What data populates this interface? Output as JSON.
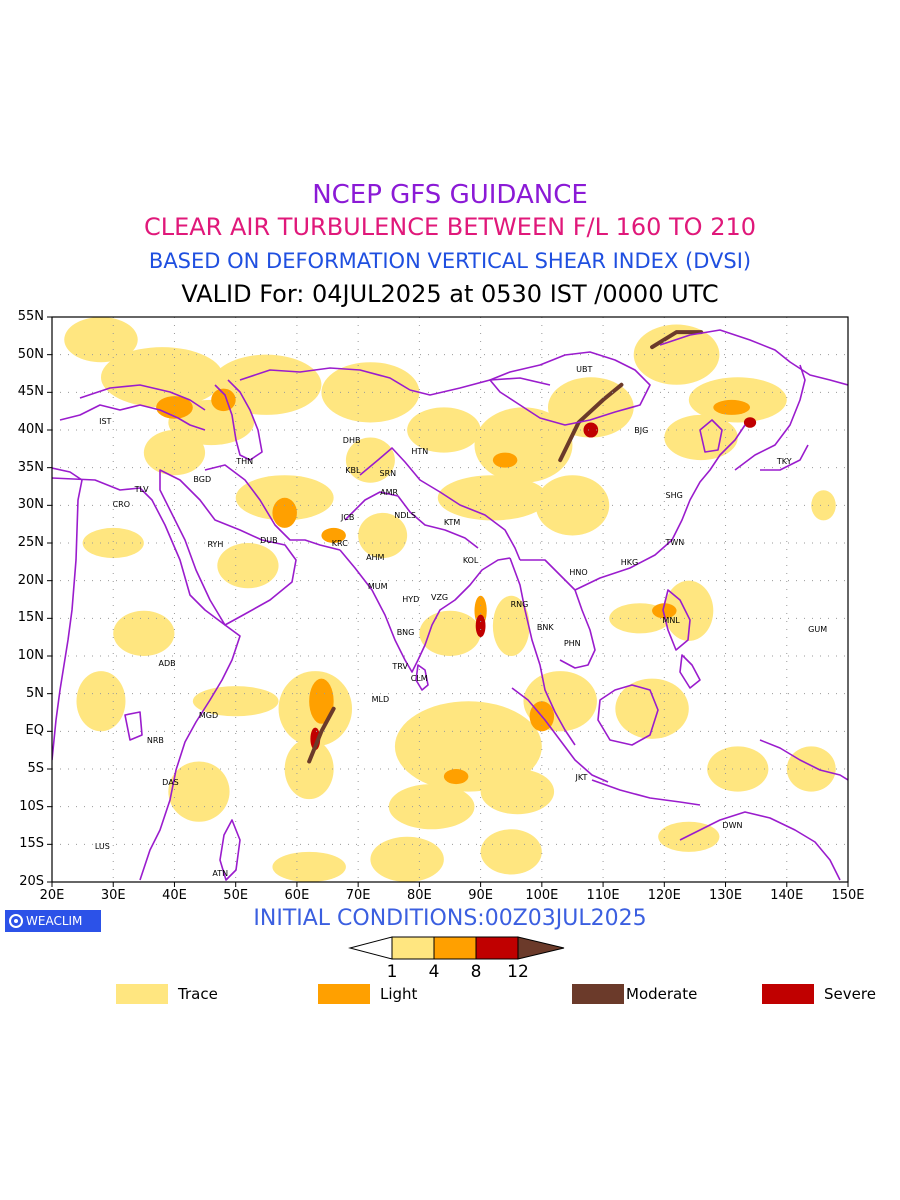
{
  "title": {
    "line1": "NCEP GFS GUIDANCE",
    "line2": "CLEAR AIR TURBULENCE BETWEEN F/L 160 TO 210",
    "line3": "BASED ON DEFORMATION VERTICAL SHEAR INDEX (DVSI)",
    "line4": "VALID For: 04JUL2025 at 0530 IST /0000 UTC"
  },
  "colors": {
    "title1": "#8b1ad6",
    "title2": "#e0187a",
    "title3": "#1f4fe0",
    "init": "#3b5fe0",
    "brand_bg": "#2c52e8",
    "boundary": "#9a1ccd",
    "trace": "#ffe680",
    "light": "#ffa000",
    "moderate": "#6b3a2a",
    "severe": "#c00000"
  },
  "axes": {
    "lat_labels": [
      "55N",
      "50N",
      "45N",
      "40N",
      "35N",
      "30N",
      "25N",
      "20N",
      "15N",
      "10N",
      "5N",
      "EQ",
      "5S",
      "10S",
      "15S",
      "20S"
    ],
    "lon_labels": [
      "20E",
      "30E",
      "40E",
      "50E",
      "60E",
      "70E",
      "80E",
      "90E",
      "100E",
      "110E",
      "120E",
      "130E",
      "140E",
      "150E"
    ],
    "lat_range": [
      -20,
      55
    ],
    "lon_range": [
      20,
      150
    ],
    "grid": true
  },
  "stations": [
    {
      "code": "UBT",
      "lon": 106.9,
      "lat": 47.9
    },
    {
      "code": "BJG",
      "lon": 116.4,
      "lat": 39.9
    },
    {
      "code": "TKY",
      "lon": 139.7,
      "lat": 35.7
    },
    {
      "code": "SHG",
      "lon": 121.5,
      "lat": 31.2
    },
    {
      "code": "TWN",
      "lon": 121.5,
      "lat": 25.0
    },
    {
      "code": "HKG",
      "lon": 114.2,
      "lat": 22.3
    },
    {
      "code": "HNO",
      "lon": 105.8,
      "lat": 21.0
    },
    {
      "code": "RNG",
      "lon": 96.2,
      "lat": 16.8
    },
    {
      "code": "BNK",
      "lon": 100.5,
      "lat": 13.7
    },
    {
      "code": "PHN",
      "lon": 104.9,
      "lat": 11.6
    },
    {
      "code": "MNL",
      "lon": 121.0,
      "lat": 14.6
    },
    {
      "code": "GUM",
      "lon": 144.8,
      "lat": 13.4
    },
    {
      "code": "IST",
      "lon": 29.0,
      "lat": 41.0
    },
    {
      "code": "TLV",
      "lon": 34.8,
      "lat": 32.1
    },
    {
      "code": "CRO",
      "lon": 31.2,
      "lat": 30.0
    },
    {
      "code": "BGD",
      "lon": 44.4,
      "lat": 33.3
    },
    {
      "code": "THN",
      "lon": 51.4,
      "lat": 35.7
    },
    {
      "code": "RYH",
      "lon": 46.7,
      "lat": 24.7
    },
    {
      "code": "DUB",
      "lon": 55.3,
      "lat": 25.2
    },
    {
      "code": "DHB",
      "lon": 68.8,
      "lat": 38.6
    },
    {
      "code": "KBL",
      "lon": 69.2,
      "lat": 34.5
    },
    {
      "code": "SRN",
      "lon": 74.8,
      "lat": 34.1
    },
    {
      "code": "HTN",
      "lon": 80.0,
      "lat": 37.1
    },
    {
      "code": "AMR",
      "lon": 74.9,
      "lat": 31.6
    },
    {
      "code": "JCB",
      "lon": 68.5,
      "lat": 28.3
    },
    {
      "code": "NDLS",
      "lon": 77.2,
      "lat": 28.6
    },
    {
      "code": "KRC",
      "lon": 67.0,
      "lat": 24.9
    },
    {
      "code": "AHM",
      "lon": 72.6,
      "lat": 23.0
    },
    {
      "code": "KTM",
      "lon": 85.3,
      "lat": 27.7
    },
    {
      "code": "KOL",
      "lon": 88.4,
      "lat": 22.6
    },
    {
      "code": "MUM",
      "lon": 72.9,
      "lat": 19.1
    },
    {
      "code": "HYD",
      "lon": 78.5,
      "lat": 17.4
    },
    {
      "code": "VZG",
      "lon": 83.2,
      "lat": 17.7
    },
    {
      "code": "BNG",
      "lon": 77.6,
      "lat": 13.0
    },
    {
      "code": "TRV",
      "lon": 76.9,
      "lat": 8.5
    },
    {
      "code": "CLM",
      "lon": 79.9,
      "lat": 6.9
    },
    {
      "code": "MLD",
      "lon": 73.5,
      "lat": 4.2
    },
    {
      "code": "ADB",
      "lon": 38.7,
      "lat": 9.0
    },
    {
      "code": "MGD",
      "lon": 45.3,
      "lat": 2.0
    },
    {
      "code": "NRB",
      "lon": 36.8,
      "lat": -1.3
    },
    {
      "code": "DAS",
      "lon": 39.3,
      "lat": -6.8
    },
    {
      "code": "LUS",
      "lon": 28.3,
      "lat": -15.4
    },
    {
      "code": "ATN",
      "lon": 47.5,
      "lat": -18.9
    },
    {
      "code": "JKT",
      "lon": 106.8,
      "lat": -6.2
    },
    {
      "code": "DWN",
      "lon": 130.8,
      "lat": -12.5
    }
  ],
  "initial_conditions": "INITIAL CONDITIONS:00Z03JUL2025",
  "brand": "WEACLIM",
  "colorbar": {
    "thresholds": [
      "1",
      "4",
      "8",
      "12"
    ],
    "fills": [
      "#ffe680",
      "#ffa000",
      "#c00000",
      "#6b3a2a"
    ]
  },
  "legend": [
    {
      "label": "Trace",
      "color": "#ffe680"
    },
    {
      "label": "Light",
      "color": "#ffa000"
    },
    {
      "label": "Moderate",
      "color": "#6b3a2a"
    },
    {
      "label": "Severe",
      "color": "#c00000"
    }
  ],
  "turbulence_areas": [
    {
      "level": "trace",
      "lon": 38,
      "lat": 47,
      "rlon": 10,
      "rlat": 4
    },
    {
      "level": "trace",
      "lon": 28,
      "lat": 52,
      "rlon": 6,
      "rlat": 3
    },
    {
      "level": "trace",
      "lon": 55,
      "lat": 46,
      "rlon": 9,
      "rlat": 4
    },
    {
      "level": "trace",
      "lon": 72,
      "lat": 45,
      "rlon": 8,
      "rlat": 4
    },
    {
      "level": "trace",
      "lon": 84,
      "lat": 40,
      "rlon": 6,
      "rlat": 3
    },
    {
      "level": "trace",
      "lon": 97,
      "lat": 38,
      "rlon": 8,
      "rlat": 5
    },
    {
      "level": "trace",
      "lon": 92,
      "lat": 31,
      "rlon": 9,
      "rlat": 3
    },
    {
      "level": "trace",
      "lon": 105,
      "lat": 30,
      "rlon": 6,
      "rlat": 4
    },
    {
      "level": "trace",
      "lon": 108,
      "lat": 43,
      "rlon": 7,
      "rlat": 4
    },
    {
      "level": "trace",
      "lon": 122,
      "lat": 50,
      "rlon": 7,
      "rlat": 4
    },
    {
      "level": "trace",
      "lon": 132,
      "lat": 44,
      "rlon": 8,
      "rlat": 3
    },
    {
      "level": "trace",
      "lon": 126,
      "lat": 39,
      "rlon": 6,
      "rlat": 3
    },
    {
      "level": "trace",
      "lon": 46,
      "lat": 41,
      "rlon": 7,
      "rlat": 3
    },
    {
      "level": "trace",
      "lon": 58,
      "lat": 31,
      "rlon": 8,
      "rlat": 3
    },
    {
      "level": "trace",
      "lon": 40,
      "lat": 37,
      "rlon": 5,
      "rlat": 3
    },
    {
      "level": "trace",
      "lon": 30,
      "lat": 25,
      "rlon": 5,
      "rlat": 2
    },
    {
      "level": "trace",
      "lon": 35,
      "lat": 13,
      "rlon": 5,
      "rlat": 3
    },
    {
      "level": "trace",
      "lon": 28,
      "lat": 4,
      "rlon": 4,
      "rlat": 4
    },
    {
      "level": "trace",
      "lon": 44,
      "lat": -8,
      "rlon": 5,
      "rlat": 4
    },
    {
      "level": "trace",
      "lon": 50,
      "lat": 4,
      "rlon": 7,
      "rlat": 2
    },
    {
      "level": "trace",
      "lon": 63,
      "lat": 3,
      "rlon": 6,
      "rlat": 5
    },
    {
      "level": "trace",
      "lon": 62,
      "lat": -5,
      "rlon": 4,
      "rlat": 4
    },
    {
      "level": "trace",
      "lon": 88,
      "lat": -2,
      "rlon": 12,
      "rlat": 6
    },
    {
      "level": "trace",
      "lon": 96,
      "lat": -8,
      "rlon": 6,
      "rlat": 3
    },
    {
      "level": "trace",
      "lon": 82,
      "lat": -10,
      "rlon": 7,
      "rlat": 3
    },
    {
      "level": "trace",
      "lon": 78,
      "lat": -17,
      "rlon": 6,
      "rlat": 3
    },
    {
      "level": "trace",
      "lon": 95,
      "lat": -16,
      "rlon": 5,
      "rlat": 3
    },
    {
      "level": "trace",
      "lon": 62,
      "lat": -18,
      "rlon": 6,
      "rlat": 2
    },
    {
      "level": "trace",
      "lon": 85,
      "lat": 13,
      "rlon": 5,
      "rlat": 3
    },
    {
      "level": "trace",
      "lon": 95,
      "lat": 14,
      "rlon": 3,
      "rlat": 4
    },
    {
      "level": "trace",
      "lon": 103,
      "lat": 4,
      "rlon": 6,
      "rlat": 4
    },
    {
      "level": "trace",
      "lon": 118,
      "lat": 3,
      "rlon": 6,
      "rlat": 4
    },
    {
      "level": "trace",
      "lon": 116,
      "lat": 15,
      "rlon": 5,
      "rlat": 2
    },
    {
      "level": "trace",
      "lon": 124,
      "lat": 16,
      "rlon": 4,
      "rlat": 4
    },
    {
      "level": "trace",
      "lon": 132,
      "lat": -5,
      "rlon": 5,
      "rlat": 3
    },
    {
      "level": "trace",
      "lon": 124,
      "lat": -14,
      "rlon": 5,
      "rlat": 2
    },
    {
      "level": "trace",
      "lon": 144,
      "lat": -5,
      "rlon": 4,
      "rlat": 3
    },
    {
      "level": "trace",
      "lon": 146,
      "lat": 30,
      "rlon": 2,
      "rlat": 2
    },
    {
      "level": "trace",
      "lon": 74,
      "lat": 26,
      "rlon": 4,
      "rlat": 3
    },
    {
      "level": "trace",
      "lon": 72,
      "lat": 36,
      "rlon": 4,
      "rlat": 3
    },
    {
      "level": "trace",
      "lon": 52,
      "lat": 22,
      "rlon": 5,
      "rlat": 3
    },
    {
      "level": "light",
      "lon": 40,
      "lat": 43,
      "rlon": 3,
      "rlat": 1.5
    },
    {
      "level": "light",
      "lon": 48,
      "lat": 44,
      "rlon": 2,
      "rlat": 1.5
    },
    {
      "level": "light",
      "lon": 58,
      "lat": 29,
      "rlon": 2,
      "rlat": 2
    },
    {
      "level": "light",
      "lon": 64,
      "lat": 4,
      "rlon": 2,
      "rlat": 3
    },
    {
      "level": "light",
      "lon": 94,
      "lat": 36,
      "rlon": 2,
      "rlat": 1
    },
    {
      "level": "light",
      "lon": 131,
      "lat": 43,
      "rlon": 3,
      "rlat": 1
    },
    {
      "level": "light",
      "lon": 120,
      "lat": 16,
      "rlon": 2,
      "rlat": 1
    },
    {
      "level": "light",
      "lon": 86,
      "lat": -6,
      "rlon": 2,
      "rlat": 1
    },
    {
      "level": "light",
      "lon": 90,
      "lat": 16,
      "rlon": 1,
      "rlat": 2
    },
    {
      "level": "light",
      "lon": 100,
      "lat": 2,
      "rlon": 2,
      "rlat": 2
    },
    {
      "level": "light",
      "lon": 66,
      "lat": 26,
      "rlon": 2,
      "rlat": 1
    },
    {
      "level": "severe",
      "lon": 108,
      "lat": 40,
      "rlon": 1.2,
      "rlat": 1
    },
    {
      "level": "severe",
      "lon": 90,
      "lat": 14,
      "rlon": 0.8,
      "rlat": 1.5
    },
    {
      "level": "severe",
      "lon": 63,
      "lat": -1,
      "rlon": 0.8,
      "rlat": 1.5
    },
    {
      "level": "severe",
      "lon": 134,
      "lat": 41,
      "rlon": 1,
      "rlat": 0.7
    }
  ],
  "moderate_streaks": [
    {
      "points": [
        [
          103,
          36
        ],
        [
          106,
          41
        ],
        [
          110,
          44
        ],
        [
          113,
          46
        ]
      ]
    },
    {
      "points": [
        [
          118,
          51
        ],
        [
          122,
          53
        ],
        [
          126,
          53
        ]
      ]
    },
    {
      "points": [
        [
          62,
          -4
        ],
        [
          64,
          0
        ],
        [
          66,
          3
        ]
      ]
    }
  ]
}
